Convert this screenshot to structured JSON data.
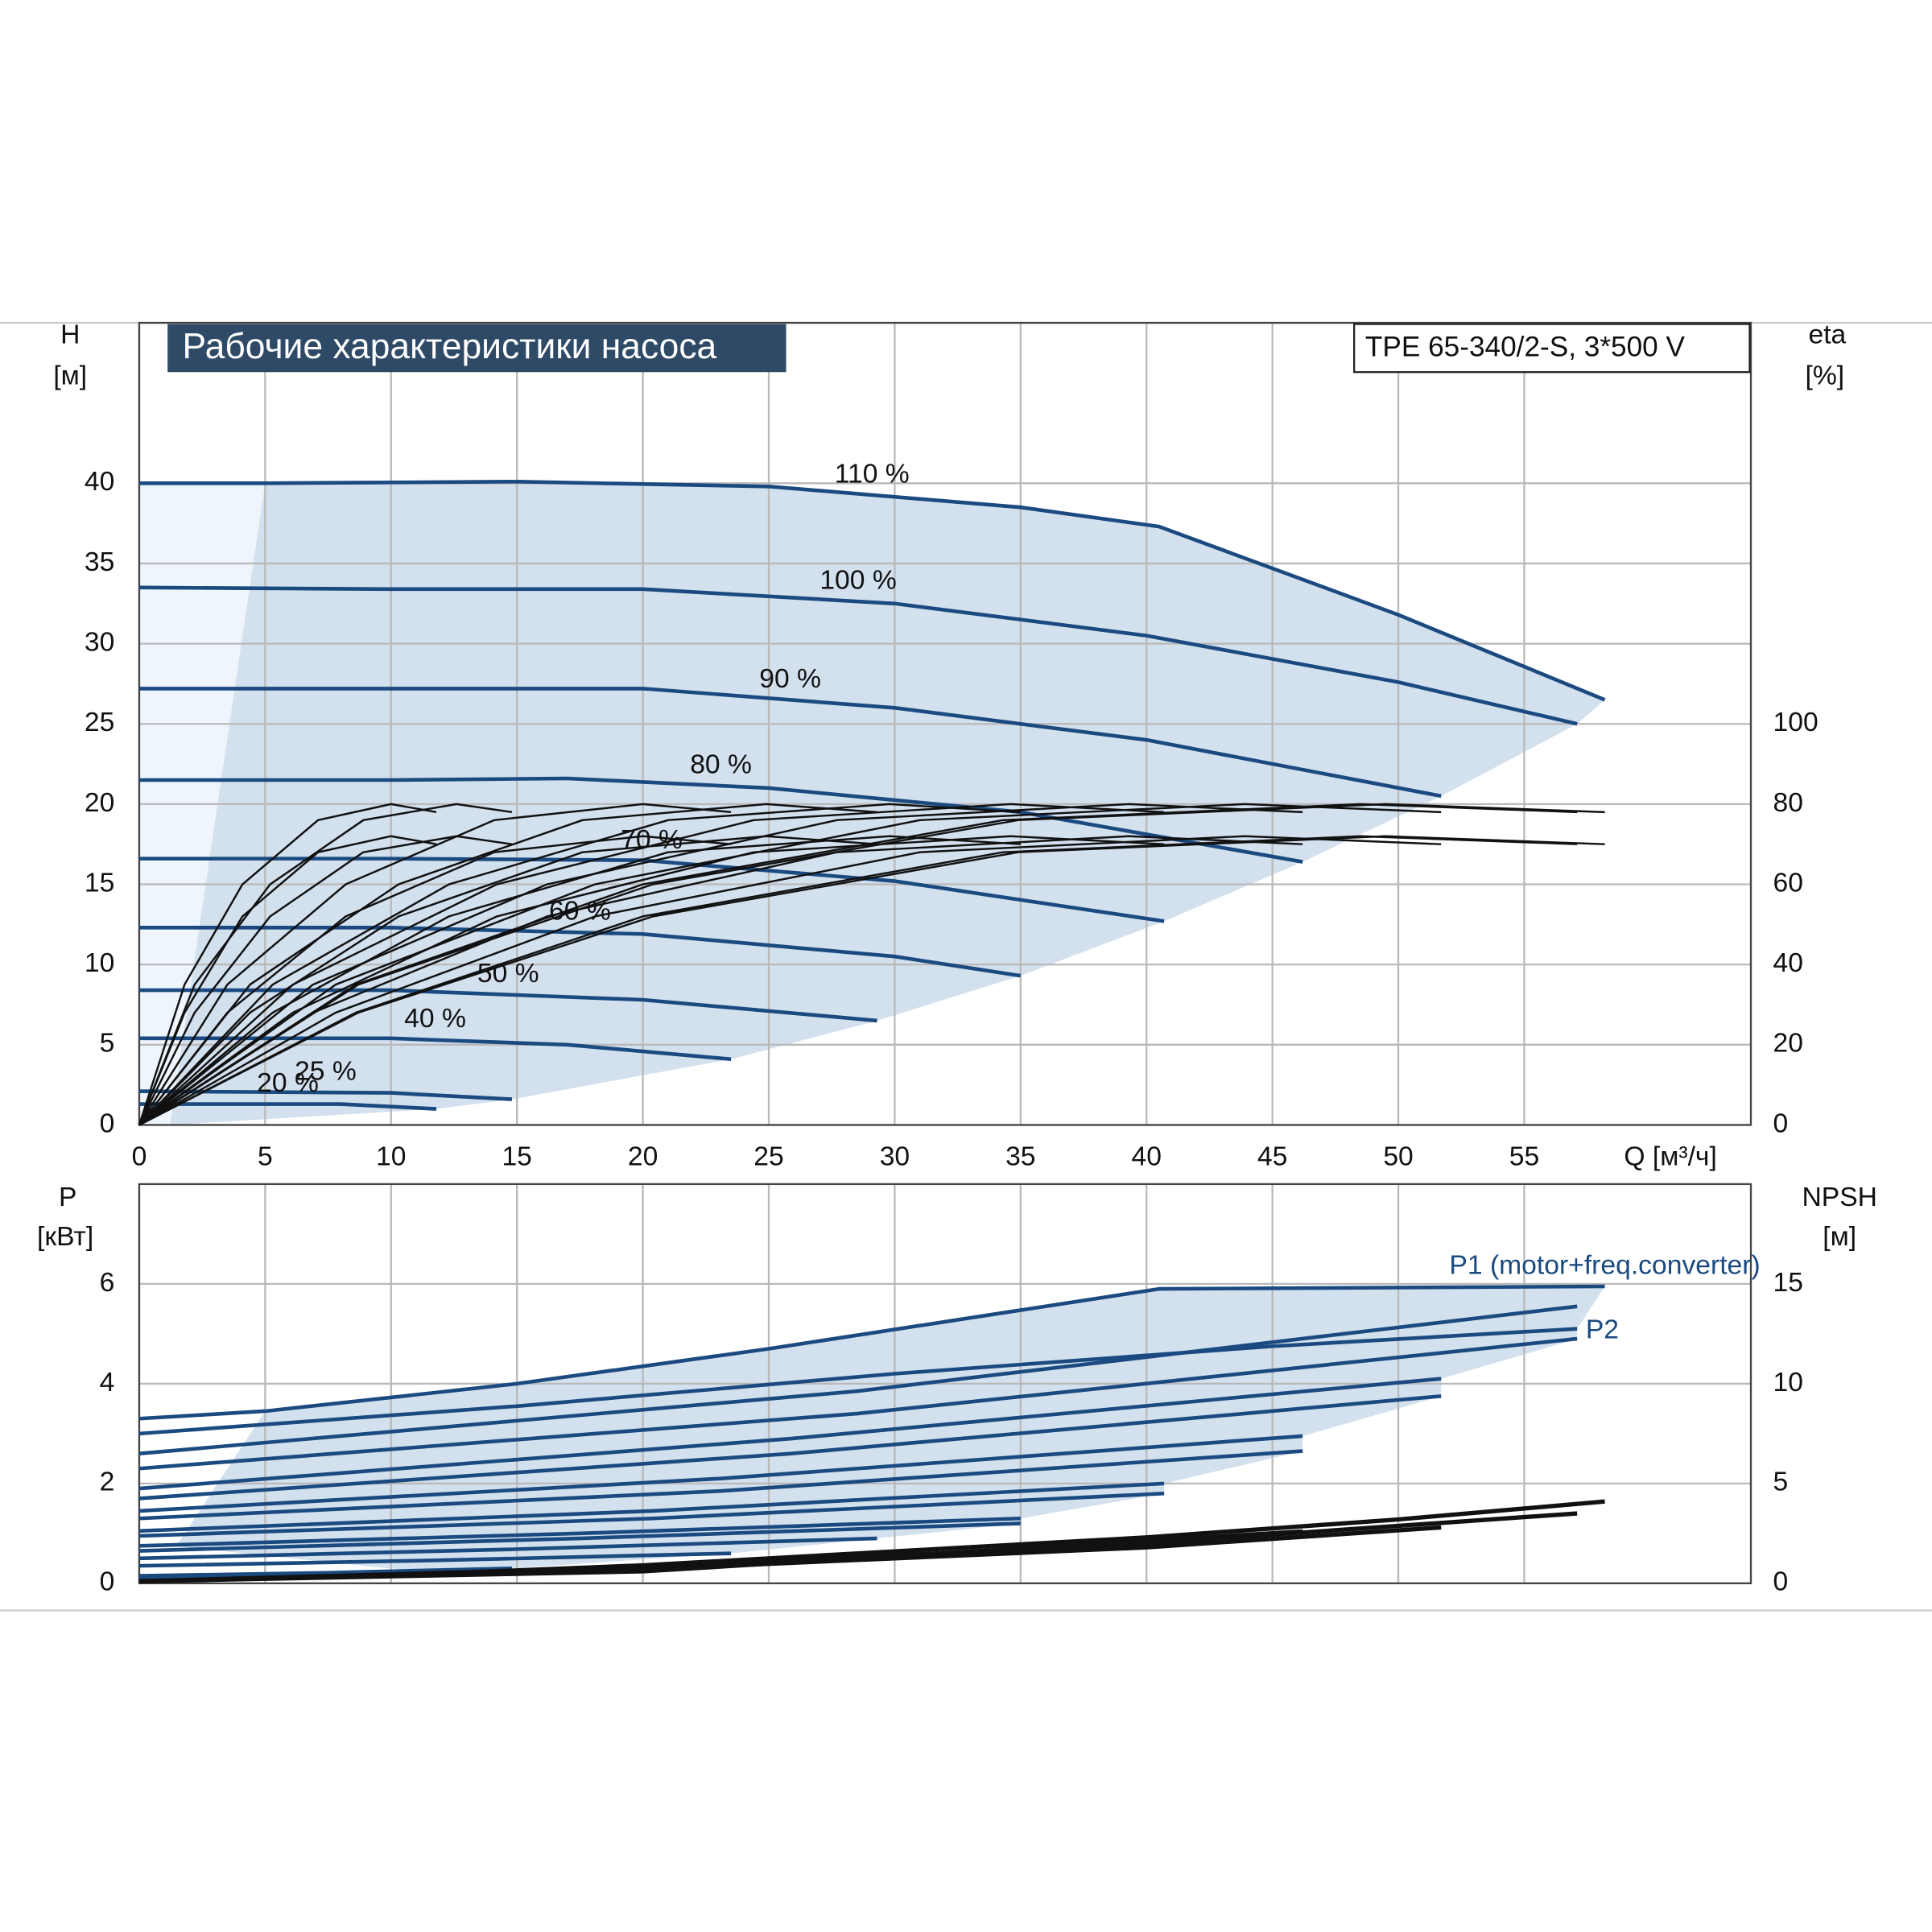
{
  "chart_data": [
    {
      "type": "line",
      "title": "Рабочие характеристики насоса",
      "subtitle": "TPE 65-340/2-S, 3*500 V",
      "y_label": "H",
      "y_unit": "[м]",
      "y2_label": "eta",
      "y2_unit": "[%]",
      "x_label": "Q [м³/ч]",
      "xlim": [
        0,
        64
      ],
      "xticks": [
        0,
        5,
        10,
        15,
        20,
        25,
        30,
        35,
        40,
        45,
        50,
        55
      ],
      "ylim": [
        0,
        50
      ],
      "yticks": [
        0,
        5,
        10,
        15,
        20,
        25,
        30,
        35,
        40
      ],
      "y2lim": [
        0,
        200
      ],
      "y2ticks": [
        0,
        20,
        40,
        60,
        80,
        100
      ],
      "grid": true,
      "series": [
        {
          "name": "110 %",
          "color": "#1a4a80",
          "x": [
            0,
            5,
            15,
            25,
            35,
            40.5,
            50,
            58.2
          ],
          "values": [
            40,
            40,
            40.1,
            39.8,
            38.5,
            37.3,
            31.8,
            26.5
          ]
        },
        {
          "name": "100 %",
          "color": "#1a4a80",
          "x": [
            0,
            10,
            20,
            30,
            40,
            50,
            57.1
          ],
          "values": [
            33.5,
            33.4,
            33.4,
            32.5,
            30.5,
            27.6,
            25
          ]
        },
        {
          "name": "90 %",
          "color": "#1a4a80",
          "x": [
            0,
            10,
            20,
            30,
            40,
            51.7
          ],
          "values": [
            27.2,
            27.2,
            27.2,
            26,
            24,
            20.5
          ]
        },
        {
          "name": "80 %",
          "color": "#1a4a80",
          "x": [
            0,
            10,
            17,
            25,
            35,
            46.2
          ],
          "values": [
            21.5,
            21.5,
            21.6,
            21,
            19.5,
            16.4
          ]
        },
        {
          "name": "70 %",
          "color": "#1a4a80",
          "x": [
            0,
            10,
            20,
            30,
            40.7
          ],
          "values": [
            16.6,
            16.6,
            16.5,
            15.2,
            12.7
          ]
        },
        {
          "name": "60 %",
          "color": "#1a4a80",
          "x": [
            0,
            10,
            20,
            30,
            35
          ],
          "values": [
            12.3,
            12.3,
            11.9,
            10.5,
            9.3
          ]
        },
        {
          "name": "50 %",
          "color": "#1a4a80",
          "x": [
            0,
            10,
            20,
            29.3
          ],
          "values": [
            8.4,
            8.4,
            7.8,
            6.5
          ]
        },
        {
          "name": "40 %",
          "color": "#1a4a80",
          "x": [
            0,
            10,
            17,
            23.5
          ],
          "values": [
            5.4,
            5.4,
            5.0,
            4.1
          ]
        },
        {
          "name": "25 %",
          "color": "#1a4a80",
          "x": [
            0,
            10,
            14.8
          ],
          "values": [
            2.1,
            2.0,
            1.6
          ]
        },
        {
          "name": "20 %",
          "color": "#1a4a80",
          "x": [
            0,
            8,
            11.8
          ],
          "values": [
            1.3,
            1.3,
            1.0
          ]
        },
        {
          "color": "#111111",
          "axis": "y2",
          "x": [
            0,
            8.7,
            20.4,
            34.9,
            49.5,
            58.2
          ],
          "values": [
            0,
            35,
            60,
            76,
            80,
            78
          ]
        },
        {
          "color": "#111111",
          "axis": "y2",
          "x": [
            0,
            8.6,
            20,
            34.3,
            48.5,
            57.1
          ],
          "values": [
            0,
            35,
            60,
            76,
            80,
            78
          ]
        },
        {
          "color": "#111111",
          "axis": "y2",
          "x": [
            0,
            7.8,
            18.1,
            31,
            43.9,
            51.7
          ],
          "values": [
            0,
            35,
            60,
            76,
            80,
            78
          ]
        },
        {
          "color": "#111111",
          "axis": "y2",
          "x": [
            0,
            6.9,
            16.2,
            27.7,
            39.3,
            46.2
          ],
          "values": [
            0,
            35,
            60,
            76,
            80,
            78
          ]
        },
        {
          "color": "#111111",
          "axis": "y2",
          "x": [
            0,
            6.1,
            14.2,
            24.4,
            34.6,
            40.7
          ],
          "values": [
            0,
            35,
            60,
            76,
            80,
            78
          ]
        },
        {
          "color": "#111111",
          "axis": "y2",
          "x": [
            0,
            5.3,
            12.3,
            21,
            29.8,
            35
          ],
          "values": [
            0,
            35,
            60,
            76,
            80,
            78
          ]
        },
        {
          "color": "#111111",
          "axis": "y2",
          "x": [
            0,
            4.4,
            10.3,
            17.6,
            24.9,
            29.3
          ],
          "values": [
            0,
            35,
            60,
            76,
            80,
            78
          ]
        },
        {
          "color": "#111111",
          "axis": "y2",
          "x": [
            0,
            3.5,
            8.2,
            14.1,
            20,
            23.5
          ],
          "values": [
            0,
            35,
            60,
            76,
            80,
            78
          ]
        },
        {
          "color": "#111111",
          "axis": "y2",
          "x": [
            0,
            2.2,
            5.2,
            8.9,
            12.6,
            14.8
          ],
          "values": [
            0,
            35,
            60,
            76,
            80,
            78
          ]
        },
        {
          "color": "#111111",
          "axis": "y2",
          "x": [
            0,
            1.8,
            4.1,
            7.1,
            10,
            11.8
          ],
          "values": [
            0,
            35,
            60,
            76,
            80,
            78
          ]
        },
        {
          "color": "#111111",
          "axis": "y2",
          "x": [
            0,
            8.7,
            20.4,
            34.9,
            49.5,
            58.2
          ],
          "values": [
            0,
            28,
            52,
            68,
            72,
            70
          ]
        },
        {
          "color": "#111111",
          "axis": "y2",
          "x": [
            0,
            8.6,
            20,
            34.3,
            48.5,
            57.1
          ],
          "values": [
            0,
            28,
            52,
            68,
            72,
            70
          ]
        },
        {
          "color": "#111111",
          "axis": "y2",
          "x": [
            0,
            7.8,
            18.1,
            31,
            43.9,
            51.7
          ],
          "values": [
            0,
            28,
            52,
            68,
            72,
            70
          ]
        },
        {
          "color": "#111111",
          "axis": "y2",
          "x": [
            0,
            6.9,
            16.2,
            27.7,
            39.3,
            46.2
          ],
          "values": [
            0,
            28,
            52,
            68,
            72,
            70
          ]
        },
        {
          "color": "#111111",
          "axis": "y2",
          "x": [
            0,
            6.1,
            14.2,
            24.4,
            34.6,
            40.7
          ],
          "values": [
            0,
            28,
            52,
            68,
            72,
            70
          ]
        },
        {
          "color": "#111111",
          "axis": "y2",
          "x": [
            0,
            5.3,
            12.3,
            21,
            29.8,
            35
          ],
          "values": [
            0,
            28,
            52,
            68,
            72,
            70
          ]
        },
        {
          "color": "#111111",
          "axis": "y2",
          "x": [
            0,
            4.4,
            10.3,
            17.6,
            24.9,
            29.3
          ],
          "values": [
            0,
            28,
            52,
            68,
            72,
            70
          ]
        },
        {
          "color": "#111111",
          "axis": "y2",
          "x": [
            0,
            3.5,
            8.2,
            14.1,
            20,
            23.5
          ],
          "values": [
            0,
            28,
            52,
            68,
            72,
            70
          ]
        },
        {
          "color": "#111111",
          "axis": "y2",
          "x": [
            0,
            2.2,
            5.2,
            8.9,
            12.6,
            14.8
          ],
          "values": [
            0,
            28,
            52,
            68,
            72,
            70
          ]
        },
        {
          "color": "#111111",
          "axis": "y2",
          "x": [
            0,
            1.8,
            4.1,
            7.1,
            10,
            11.8
          ],
          "values": [
            0,
            28,
            52,
            68,
            72,
            70
          ]
        }
      ]
    },
    {
      "type": "line",
      "y_label": "P",
      "y_unit": "[кВт]",
      "y2_label": "NPSH",
      "y2_unit": "[м]",
      "xlim": [
        0,
        64
      ],
      "xticks": [
        0,
        5,
        10,
        15,
        20,
        25,
        30,
        35,
        40,
        45,
        50,
        55
      ],
      "ylim": [
        0,
        8
      ],
      "yticks": [
        0,
        2,
        4,
        6
      ],
      "y2lim": [
        0,
        20
      ],
      "y2ticks": [
        0,
        5,
        10,
        15
      ],
      "grid": true,
      "series": [
        {
          "name": "P1 (motor+freq.converter)",
          "color": "#1a4a80",
          "x": [
            0,
            5,
            15,
            25,
            40.5,
            58.2
          ],
          "values": [
            3.3,
            3.45,
            4.0,
            4.7,
            5.9,
            5.95
          ]
        },
        {
          "name": "P2",
          "color": "#1a4a80",
          "x": [
            0,
            15,
            30,
            45,
            57.1
          ],
          "values": [
            3.0,
            3.55,
            4.2,
            4.75,
            5.1
          ]
        },
        {
          "color": "#1a4a80",
          "x": [
            0,
            28.5,
            57.1
          ],
          "values": [
            2.6,
            3.85,
            5.55
          ]
        },
        {
          "color": "#1a4a80",
          "x": [
            0,
            25.9,
            51.7
          ],
          "values": [
            1.9,
            2.9,
            4.1
          ]
        },
        {
          "color": "#1a4a80",
          "x": [
            0,
            23.1,
            46.2
          ],
          "values": [
            1.45,
            2.1,
            2.95
          ]
        },
        {
          "color": "#1a4a80",
          "x": [
            0,
            20.4,
            40.7
          ],
          "values": [
            1.05,
            1.45,
            2.0
          ]
        },
        {
          "color": "#1a4a80",
          "x": [
            0,
            17.5,
            35
          ],
          "values": [
            0.75,
            1.0,
            1.3
          ]
        },
        {
          "color": "#1a4a80",
          "x": [
            0,
            14.7,
            29.3
          ],
          "values": [
            0.5,
            0.68,
            0.9
          ]
        },
        {
          "color": "#1a4a80",
          "x": [
            0,
            11.8,
            23.5
          ],
          "values": [
            0.35,
            0.46,
            0.6
          ]
        },
        {
          "color": "#1a4a80",
          "x": [
            0,
            7.4,
            14.8
          ],
          "values": [
            0.15,
            0.21,
            0.3
          ]
        },
        {
          "color": "#1a4a80",
          "x": [
            0,
            5.9,
            11.8
          ],
          "values": [
            0.1,
            0.14,
            0.2
          ]
        },
        {
          "color": "#1a4a80",
          "x": [
            0,
            28.5,
            57.1
          ],
          "values": [
            2.3,
            3.4,
            4.9
          ]
        },
        {
          "color": "#1a4a80",
          "x": [
            0,
            25.9,
            51.7
          ],
          "values": [
            1.7,
            2.6,
            3.75
          ]
        },
        {
          "color": "#1a4a80",
          "x": [
            0,
            23.1,
            46.2
          ],
          "values": [
            1.3,
            1.85,
            2.65
          ]
        },
        {
          "color": "#1a4a80",
          "x": [
            0,
            20.4,
            40.7
          ],
          "values": [
            0.95,
            1.3,
            1.8
          ]
        },
        {
          "color": "#1a4a80",
          "x": [
            0,
            17.5,
            35
          ],
          "values": [
            0.65,
            0.9,
            1.2
          ]
        },
        {
          "color": "#111111",
          "axis": "y2",
          "x": [
            0,
            10,
            20,
            30,
            40,
            50,
            58.2
          ],
          "values": [
            0.1,
            0.4,
            0.9,
            1.6,
            2.3,
            3.2,
            4.1
          ]
        },
        {
          "color": "#111111",
          "axis": "y2",
          "x": [
            0,
            20,
            40,
            57.1
          ],
          "values": [
            0.1,
            0.8,
            2.0,
            3.5
          ]
        },
        {
          "color": "#111111",
          "axis": "y2",
          "x": [
            0,
            20,
            40,
            51.7
          ],
          "values": [
            0.1,
            0.7,
            1.8,
            2.8
          ]
        },
        {
          "color": "#111111",
          "axis": "y2",
          "x": [
            0,
            20,
            46.2
          ],
          "values": [
            0.1,
            0.6,
            2.6
          ]
        }
      ]
    }
  ]
}
